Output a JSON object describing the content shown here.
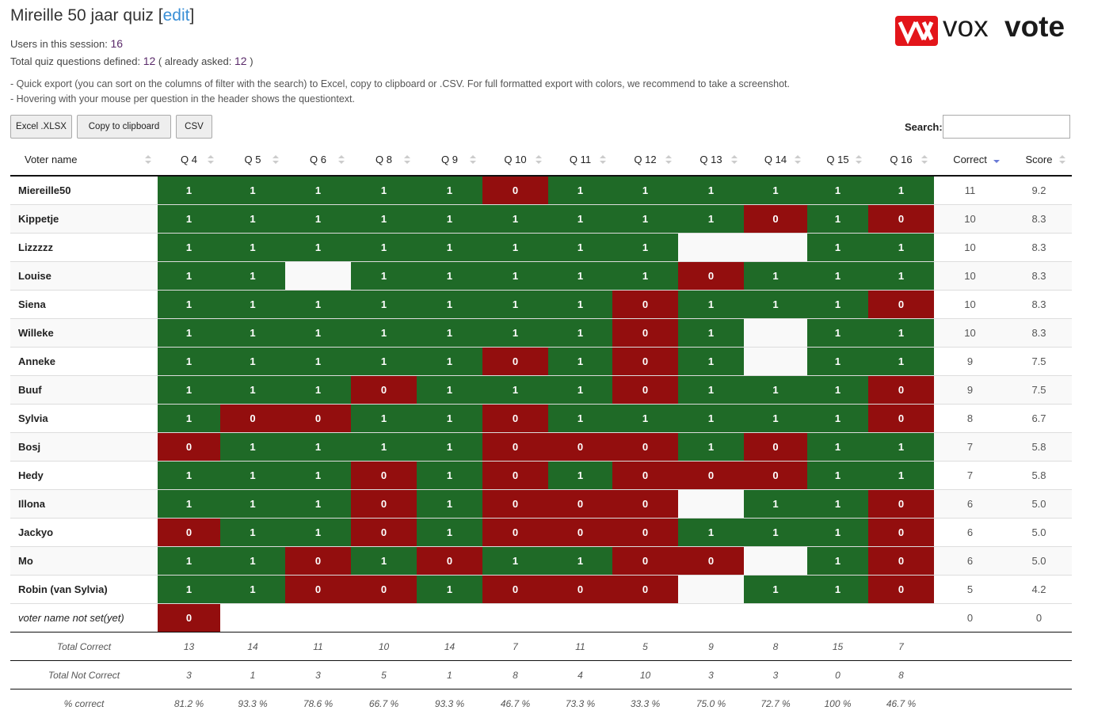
{
  "header": {
    "title": "Mireille 50 jaar quiz",
    "edit_open": "[",
    "edit": "edit",
    "edit_close": "]",
    "users_label": "Users in this session:",
    "users": "16",
    "questions_label": "Total quiz questions defined:",
    "questions": "12",
    "asked_label": "( already asked:",
    "asked": "12",
    "asked_close": ")",
    "notes": [
      "- Quick export (you can sort on the columns of filter with the search) to Excel, copy to clipboard or .CSV. For full formatted export with colors, we recommend to take a screenshot.",
      "- Hovering with your mouse per question in the header shows the questiontext."
    ]
  },
  "logo": {
    "part1": "vox",
    "part2": "vote"
  },
  "toolbar": {
    "buttons": [
      "Excel .XLSX",
      "Copy to clipboard",
      "CSV"
    ],
    "search_label": "Search:"
  },
  "table": {
    "columns": [
      "Voter name",
      "Q 4",
      "Q 5",
      "Q 6",
      "Q 8",
      "Q 9",
      "Q 10",
      "Q 11",
      "Q 12",
      "Q 13",
      "Q 14",
      "Q 15",
      "Q 16",
      "Correct",
      "Score"
    ],
    "rows": [
      {
        "name": "Miereille50",
        "cells": [
          1,
          1,
          1,
          1,
          1,
          0,
          1,
          1,
          1,
          1,
          1,
          1
        ],
        "correct": 11,
        "score": "9.2"
      },
      {
        "name": "Kippetje",
        "cells": [
          1,
          1,
          1,
          1,
          1,
          1,
          1,
          1,
          1,
          0,
          1,
          0
        ],
        "correct": 10,
        "score": "8.3"
      },
      {
        "name": "Lizzzzz",
        "cells": [
          1,
          1,
          1,
          1,
          1,
          1,
          1,
          1,
          null,
          null,
          1,
          1
        ],
        "correct": 10,
        "score": "8.3"
      },
      {
        "name": "Louise",
        "cells": [
          1,
          1,
          null,
          1,
          1,
          1,
          1,
          1,
          0,
          1,
          1,
          1
        ],
        "correct": 10,
        "score": "8.3"
      },
      {
        "name": "Siena",
        "cells": [
          1,
          1,
          1,
          1,
          1,
          1,
          1,
          0,
          1,
          1,
          1,
          0
        ],
        "correct": 10,
        "score": "8.3"
      },
      {
        "name": "Willeke",
        "cells": [
          1,
          1,
          1,
          1,
          1,
          1,
          1,
          0,
          1,
          null,
          1,
          1
        ],
        "correct": 10,
        "score": "8.3"
      },
      {
        "name": "Anneke",
        "cells": [
          1,
          1,
          1,
          1,
          1,
          0,
          1,
          0,
          1,
          null,
          1,
          1
        ],
        "correct": 9,
        "score": "7.5"
      },
      {
        "name": "Buuf",
        "cells": [
          1,
          1,
          1,
          0,
          1,
          1,
          1,
          0,
          1,
          1,
          1,
          0
        ],
        "correct": 9,
        "score": "7.5"
      },
      {
        "name": "Sylvia",
        "cells": [
          1,
          0,
          0,
          1,
          1,
          0,
          1,
          1,
          1,
          1,
          1,
          0
        ],
        "correct": 8,
        "score": "6.7"
      },
      {
        "name": "Bosj",
        "cells": [
          0,
          1,
          1,
          1,
          1,
          0,
          0,
          0,
          1,
          0,
          1,
          1
        ],
        "correct": 7,
        "score": "5.8"
      },
      {
        "name": "Hedy",
        "cells": [
          1,
          1,
          1,
          0,
          1,
          0,
          1,
          0,
          0,
          0,
          1,
          1
        ],
        "correct": 7,
        "score": "5.8"
      },
      {
        "name": "Illona",
        "cells": [
          1,
          1,
          1,
          0,
          1,
          0,
          0,
          0,
          null,
          1,
          1,
          0
        ],
        "correct": 6,
        "score": "5.0"
      },
      {
        "name": "Jackyo",
        "cells": [
          0,
          1,
          1,
          0,
          1,
          0,
          0,
          0,
          1,
          1,
          1,
          0
        ],
        "correct": 6,
        "score": "5.0"
      },
      {
        "name": "Mo",
        "cells": [
          1,
          1,
          0,
          1,
          0,
          1,
          1,
          0,
          0,
          null,
          1,
          0
        ],
        "correct": 6,
        "score": "5.0"
      },
      {
        "name": "Robin (van Sylvia)",
        "cells": [
          1,
          1,
          0,
          0,
          1,
          0,
          0,
          0,
          null,
          1,
          1,
          0
        ],
        "correct": 5,
        "score": "4.2"
      },
      {
        "name": "voter name not set(yet)",
        "cells": [
          0,
          null,
          null,
          null,
          null,
          null,
          null,
          null,
          null,
          null,
          null,
          null
        ],
        "correct": 0,
        "score": "0"
      }
    ],
    "footer": [
      {
        "label": "Total Correct",
        "values": [
          13,
          14,
          11,
          10,
          14,
          7,
          11,
          5,
          9,
          8,
          15,
          7
        ]
      },
      {
        "label": "Total Not Correct",
        "values": [
          3,
          1,
          3,
          5,
          1,
          8,
          4,
          10,
          3,
          3,
          0,
          8
        ]
      },
      {
        "label": "% correct",
        "values": [
          "81.2 %",
          "93.3 %",
          "78.6 %",
          "66.7 %",
          "93.3 %",
          "46.7 %",
          "73.3 %",
          "33.3 %",
          "75.0 %",
          "72.7 %",
          "100 %",
          "46.7 %"
        ]
      }
    ]
  }
}
